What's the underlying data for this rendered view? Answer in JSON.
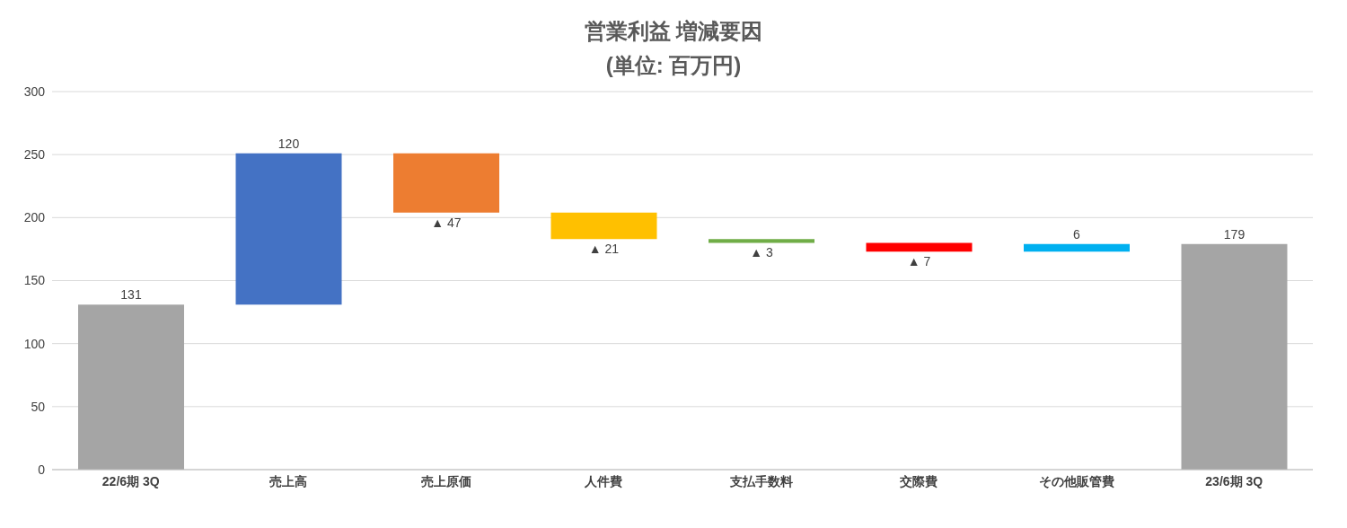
{
  "chart_data": {
    "type": "bar",
    "title": "営業利益 増減要因",
    "subtitle": "(単位: 百万円)",
    "categories": [
      "22/6期 3Q",
      "売上高",
      "売上原価",
      "人件費",
      "支払手数料",
      "交際費",
      "その他販管費",
      "23/6期 3Q"
    ],
    "values": [
      131,
      120,
      -47,
      -21,
      -3,
      -7,
      6,
      179
    ],
    "base": [
      0,
      131,
      251,
      204,
      183,
      180,
      173,
      0
    ],
    "colors": [
      "#a5a5a5",
      "#4472c4",
      "#ed7d31",
      "#ffc000",
      "#70ad47",
      "#ff0000",
      "#00b0f0",
      "#a5a5a5"
    ],
    "value_labels": [
      "131",
      "120",
      "▲ 47",
      "▲ 21",
      "▲ 3",
      "▲ 7",
      "6",
      "179"
    ],
    "ylim": [
      0,
      300
    ],
    "yticks": [
      0,
      50,
      100,
      150,
      200,
      250,
      300
    ],
    "grid": "y",
    "legend": false
  }
}
